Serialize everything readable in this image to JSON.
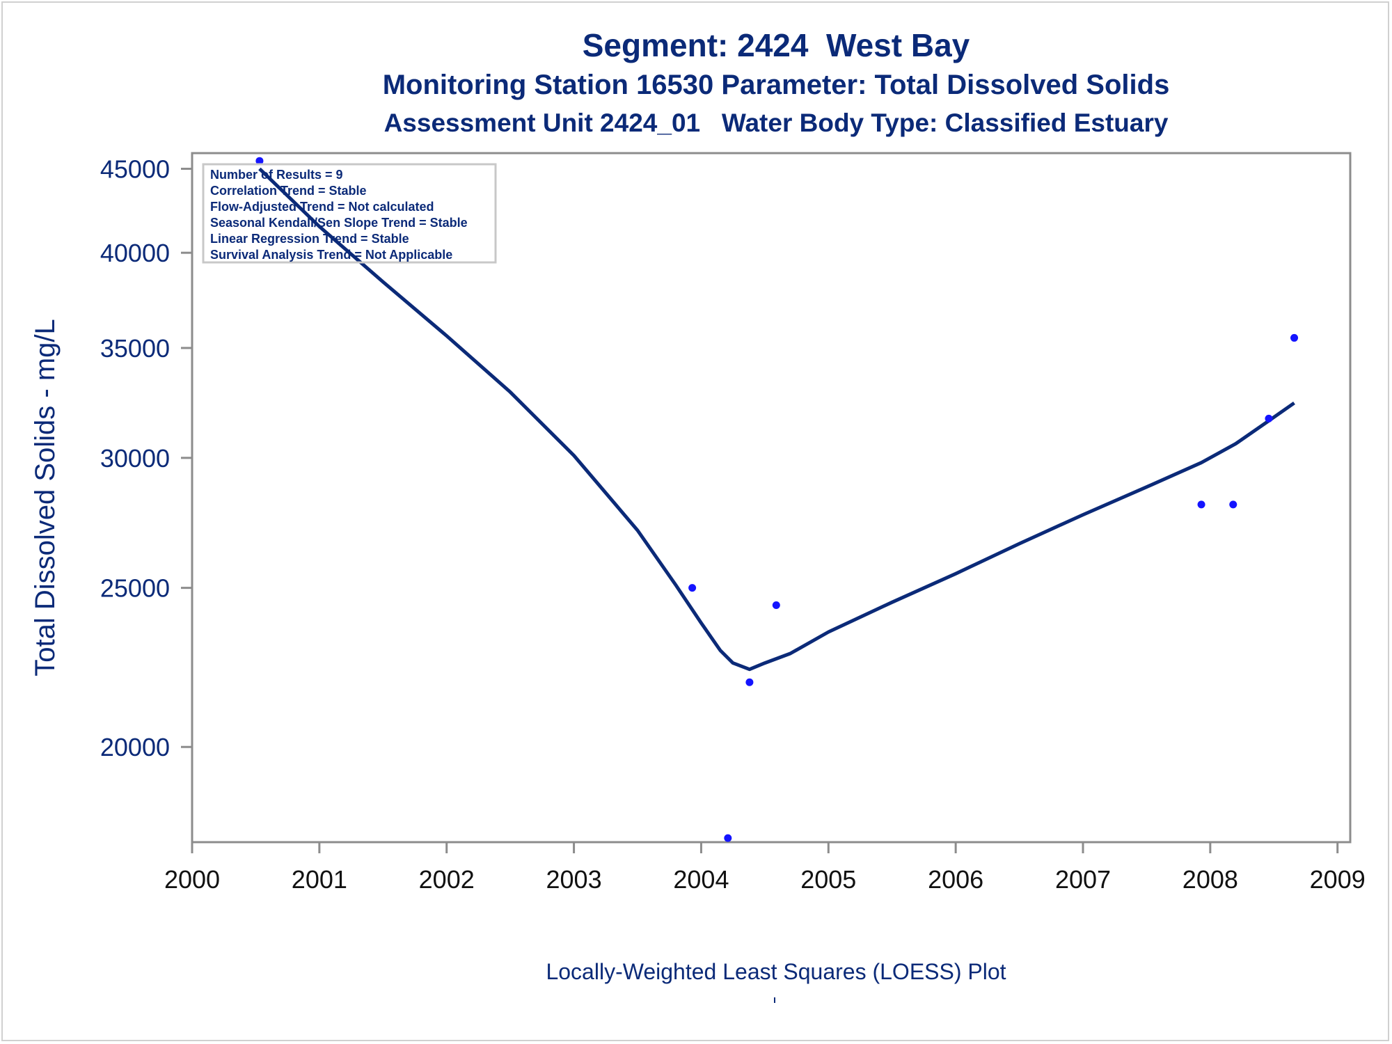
{
  "chart_data": {
    "type": "scatter",
    "title": "Segment: 2424  West Bay",
    "subtitle_1": "Monitoring Station 16530 Parameter: Total Dissolved Solids",
    "subtitle_2": "Assessment Unit 2424_01   Water Body Type: Classified Estuary",
    "xlabel": "",
    "ylabel": "Total Dissolved Solids - mg/L",
    "footnote": "Locally-Weighted Least Squares (LOESS) Plot",
    "x_ticks": [
      "2000",
      "2001",
      "2002",
      "2003",
      "2004",
      "2005",
      "2006",
      "2007",
      "2008",
      "2009"
    ],
    "y_ticks": [
      "20000",
      "25000",
      "30000",
      "35000",
      "40000",
      "45000"
    ],
    "y_scale": "log",
    "xlim": [
      2000,
      2009.1
    ],
    "ylim": [
      17500,
      46000
    ],
    "legend_placement": "top-left",
    "stats_box": [
      "Number of Results = 9",
      "Correlation Trend = Stable",
      "Flow-Adjusted Trend = Not calculated",
      "Seasonal Kendall/Sen Slope Trend = Stable",
      "Linear Regression Trend = Stable",
      "Survival Analysis Trend = Not Applicable"
    ],
    "series": [
      {
        "kind": "points",
        "x": [
          2000.53,
          2003.93,
          2004.21,
          2004.38,
          2004.59,
          2007.93,
          2008.18,
          2008.46,
          2008.66
        ],
        "y": [
          45500,
          25000,
          17600,
          21900,
          24400,
          28100,
          28100,
          31700,
          35500
        ]
      },
      {
        "kind": "loess",
        "x": [
          2000.53,
          2001.0,
          2001.5,
          2002.0,
          2002.5,
          2003.0,
          2003.5,
          2003.8,
          2004.0,
          2004.15,
          2004.25,
          2004.38,
          2004.5,
          2004.7,
          2005.0,
          2005.5,
          2006.0,
          2006.5,
          2007.0,
          2007.5,
          2007.93,
          2008.2,
          2008.46,
          2008.66
        ],
        "y": [
          45000,
          41500,
          38400,
          35600,
          32900,
          30100,
          27100,
          25100,
          23800,
          22900,
          22500,
          22300,
          22500,
          22800,
          23500,
          24500,
          25500,
          26600,
          27700,
          28800,
          29800,
          30600,
          31600,
          32400
        ]
      }
    ],
    "colors": {
      "points": "#1414ff",
      "line": "#0b2a78",
      "axis": "#8c8c8c",
      "text": "#0b2a78",
      "tick_labels_x": "#111111"
    }
  }
}
